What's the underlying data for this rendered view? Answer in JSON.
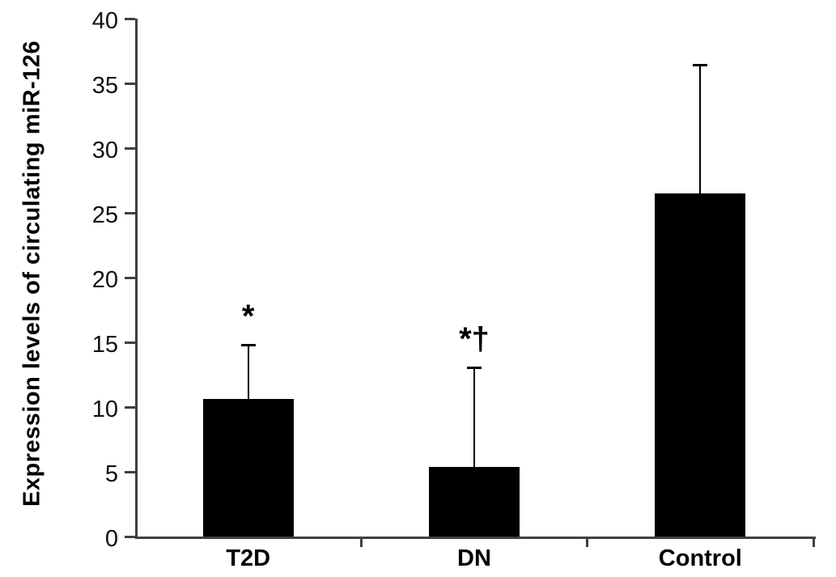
{
  "figure": {
    "background": "#ffffff"
  },
  "chart_data": {
    "type": "bar",
    "title": "",
    "xlabel": "",
    "ylabel": "Expression levels of circulating miR-126",
    "ylim": [
      0,
      40
    ],
    "yticks": [
      0,
      5,
      10,
      15,
      20,
      25,
      30,
      35,
      40
    ],
    "categories": [
      "T2D",
      "DN",
      "Control"
    ],
    "values": [
      10.6,
      5.4,
      26.5
    ],
    "error_upper": [
      4.3,
      7.7,
      10.0
    ],
    "annotations": [
      "*",
      "*†",
      ""
    ],
    "bar_color": "#000000",
    "axis_color": "#404040",
    "error_bar_color": "#000000",
    "grid": false,
    "legend": null
  }
}
